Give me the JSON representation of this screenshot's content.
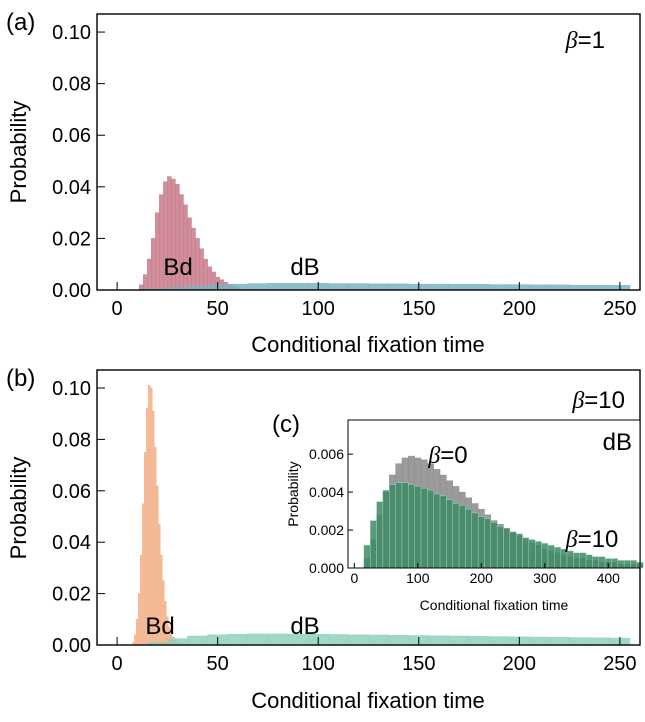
{
  "chart_data": [
    {
      "panel_label": "(a)",
      "type": "bar",
      "xlabel": "Conditional fixation time",
      "ylabel": "Probability",
      "xlim": [
        -10,
        260
      ],
      "ylim": [
        0,
        0.107
      ],
      "xticks": [
        0,
        50,
        100,
        150,
        200,
        250
      ],
      "yticks": [
        0.0,
        0.02,
        0.04,
        0.06,
        0.08,
        0.1
      ],
      "ytick_labels": [
        "0.00",
        "0.02",
        "0.04",
        "0.06",
        "0.08",
        "0.10"
      ],
      "annotations": [
        {
          "text_it": "β",
          "text": "=1",
          "x": 230,
          "y": 0.097
        },
        {
          "text": "Bd",
          "x": 28,
          "y": 0.004
        },
        {
          "text": "dB",
          "x": 90,
          "y": 0.004
        }
      ],
      "series": [
        {
          "name": "Bd",
          "color": "#c87a8a",
          "x": [
            12,
            14,
            16,
            18,
            20,
            22,
            24,
            26,
            28,
            30,
            32,
            34,
            36,
            38,
            40,
            42,
            44,
            46,
            48,
            50,
            52,
            54,
            56,
            58,
            60
          ],
          "values": [
            0.002,
            0.006,
            0.012,
            0.02,
            0.03,
            0.037,
            0.042,
            0.044,
            0.043,
            0.041,
            0.037,
            0.033,
            0.028,
            0.024,
            0.02,
            0.016,
            0.012,
            0.009,
            0.007,
            0.005,
            0.004,
            0.003,
            0.002,
            0.0015,
            0.001
          ]
        },
        {
          "name": "dB",
          "color": "#7ab3c2",
          "x": [
            20,
            30,
            40,
            50,
            60,
            70,
            80,
            90,
            100,
            110,
            120,
            130,
            140,
            150,
            160,
            170,
            180,
            190,
            200,
            210,
            220,
            230,
            240,
            250
          ],
          "values": [
            0.0005,
            0.001,
            0.0015,
            0.002,
            0.0023,
            0.0025,
            0.0026,
            0.0026,
            0.0026,
            0.0025,
            0.0025,
            0.0024,
            0.0024,
            0.0023,
            0.0023,
            0.0022,
            0.0022,
            0.0021,
            0.0021,
            0.002,
            0.002,
            0.0019,
            0.0019,
            0.0018
          ]
        }
      ]
    },
    {
      "panel_label": "(b)",
      "type": "bar",
      "xlabel": "Conditional fixation time",
      "ylabel": "Probability",
      "xlim": [
        -10,
        260
      ],
      "ylim": [
        0,
        0.107
      ],
      "xticks": [
        0,
        50,
        100,
        150,
        200,
        250
      ],
      "yticks": [
        0.0,
        0.02,
        0.04,
        0.06,
        0.08,
        0.1
      ],
      "ytick_labels": [
        "0.00",
        "0.02",
        "0.04",
        "0.06",
        "0.08",
        "0.10"
      ],
      "annotations": [
        {
          "text_it": "β",
          "text": "=10",
          "x": 230,
          "y": 0.097
        },
        {
          "text": "Bd",
          "x": 17,
          "y": 0.004
        },
        {
          "text": "dB",
          "x": 90,
          "y": 0.004
        }
      ],
      "series": [
        {
          "name": "Bd",
          "color": "#f2b086",
          "x": [
            8,
            9,
            10,
            11,
            12,
            13,
            14,
            15,
            16,
            17,
            18,
            19,
            20,
            21,
            22,
            23,
            24,
            25,
            26,
            27,
            28,
            29,
            30,
            31,
            32
          ],
          "values": [
            0.001,
            0.004,
            0.01,
            0.02,
            0.035,
            0.055,
            0.075,
            0.092,
            0.101,
            0.1,
            0.091,
            0.077,
            0.062,
            0.047,
            0.035,
            0.025,
            0.017,
            0.011,
            0.007,
            0.004,
            0.003,
            0.002,
            0.001,
            0.0007,
            0.0004
          ]
        },
        {
          "name": "dB",
          "color": "#8fd1b8",
          "x": [
            20,
            30,
            40,
            50,
            60,
            70,
            80,
            90,
            100,
            110,
            120,
            130,
            140,
            150,
            160,
            170,
            180,
            190,
            200,
            210,
            220,
            230,
            240,
            250
          ],
          "values": [
            0.001,
            0.0025,
            0.0035,
            0.004,
            0.0042,
            0.0043,
            0.0043,
            0.0042,
            0.0042,
            0.0041,
            0.004,
            0.0039,
            0.0038,
            0.0037,
            0.0036,
            0.0035,
            0.0034,
            0.0033,
            0.0032,
            0.0031,
            0.003,
            0.0029,
            0.0028,
            0.0027
          ]
        }
      ]
    },
    {
      "panel_label": "(c)",
      "type": "bar",
      "xlabel": "Conditional fixation time",
      "ylabel": "Probability",
      "xlim": [
        -10,
        450
      ],
      "ylim": [
        0,
        0.0078
      ],
      "xticks": [
        0,
        100,
        200,
        300,
        400
      ],
      "yticks": [
        0.0,
        0.002,
        0.004,
        0.006
      ],
      "ytick_labels": [
        "0.000",
        "0.002",
        "0.004",
        "0.006"
      ],
      "annotations": [
        {
          "text": "dB",
          "x": 420,
          "y": 0.0068
        },
        {
          "text_it": "β",
          "text": "=0",
          "x": 110,
          "y": 0.0054
        },
        {
          "text_it": "β",
          "text": "=10",
          "x": 380,
          "y": 0.0014
        }
      ],
      "series": [
        {
          "name": "β=0",
          "color": "#8a8a8a",
          "x": [
            20,
            30,
            40,
            50,
            60,
            70,
            80,
            90,
            100,
            110,
            120,
            130,
            140,
            150,
            160,
            170,
            180,
            190,
            200,
            210,
            220,
            230,
            240,
            250,
            260,
            270,
            280,
            290,
            300,
            310,
            320,
            330,
            340,
            350,
            360,
            370,
            380,
            390,
            400,
            410,
            420,
            430,
            440,
            450
          ],
          "values": [
            0.0005,
            0.0015,
            0.0028,
            0.004,
            0.0049,
            0.0055,
            0.0058,
            0.0059,
            0.0058,
            0.0057,
            0.0055,
            0.0052,
            0.0049,
            0.0046,
            0.0043,
            0.004,
            0.0037,
            0.0034,
            0.0031,
            0.0028,
            0.0025,
            0.0023,
            0.0021,
            0.0019,
            0.0017,
            0.0015,
            0.0013,
            0.0012,
            0.001,
            0.0009,
            0.0008,
            0.0007,
            0.0006,
            0.0005,
            0.0005,
            0.0004,
            0.0004,
            0.0003,
            0.0003,
            0.0003,
            0.0002,
            0.0002,
            0.0002,
            0.0002
          ]
        },
        {
          "name": "β=10",
          "color": "#3c8a64",
          "light_color": "#a9dcc6",
          "x": [
            20,
            30,
            40,
            50,
            60,
            70,
            80,
            90,
            100,
            110,
            120,
            130,
            140,
            150,
            160,
            170,
            180,
            190,
            200,
            210,
            220,
            230,
            240,
            250,
            260,
            270,
            280,
            290,
            300,
            310,
            320,
            330,
            340,
            350,
            360,
            370,
            380,
            390,
            400,
            410,
            420,
            430,
            440,
            450
          ],
          "values": [
            0.0012,
            0.0025,
            0.0035,
            0.0041,
            0.0044,
            0.0045,
            0.0045,
            0.0044,
            0.0043,
            0.0042,
            0.0041,
            0.0039,
            0.0038,
            0.0036,
            0.0034,
            0.0033,
            0.0031,
            0.0029,
            0.0027,
            0.0026,
            0.0024,
            0.0022,
            0.0021,
            0.0019,
            0.0018,
            0.0016,
            0.0015,
            0.0014,
            0.0013,
            0.0012,
            0.0011,
            0.001,
            0.0009,
            0.0008,
            0.0008,
            0.0007,
            0.0006,
            0.0006,
            0.0005,
            0.0005,
            0.0004,
            0.0004,
            0.0004,
            0.0003
          ]
        }
      ]
    }
  ]
}
